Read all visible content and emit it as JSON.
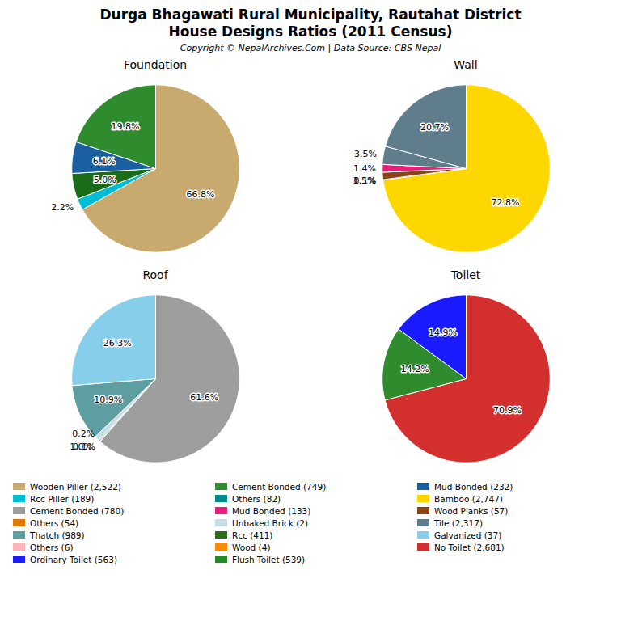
{
  "title": "Durga Bhagawati Rural Municipality, Rautahat District",
  "subtitle": "House Designs Ratios (2011 Census)",
  "caption": "Copyright © NepalArchives.Com | Data Source: CBS Nepal",
  "chart_data": [
    {
      "type": "pie",
      "title": "Foundation",
      "values": [
        66.8,
        2.2,
        5.0,
        6.1,
        19.8
      ],
      "value_labels": [
        "66.8%",
        "2.2%",
        "5.0%",
        "6.1%",
        "19.8%"
      ],
      "colors": [
        "#c8a96e",
        "#00bcd4",
        "#1a6b1a",
        "#1a5fa0",
        "#2e8b2e"
      ],
      "data_labels": true
    },
    {
      "type": "pie",
      "title": "Wall",
      "values": [
        72.8,
        0.1,
        1.4,
        1.5,
        3.5,
        20.7
      ],
      "value_labels": [
        "72.8%",
        "0.1%",
        "1.4%",
        "1.5%",
        "3.5%",
        "20.7%"
      ],
      "colors": [
        "#FFD700",
        "#e07b00",
        "#8B4513",
        "#e8207a",
        "#607d8b",
        "#607d8b"
      ],
      "data_labels": true
    },
    {
      "type": "pie",
      "title": "Roof",
      "values": [
        61.6,
        0.1,
        0.2,
        1.0,
        10.9,
        26.3
      ],
      "value_labels": [
        "61.6%",
        "0.1%",
        "0.2%",
        "1.0%",
        "10.9%",
        "26.3%"
      ],
      "colors": [
        "#9e9e9e",
        "#ffb3ba",
        "#2e8b2e",
        "#c8dce8",
        "#5f9ea0",
        "#87ceeb"
      ],
      "data_labels": true
    },
    {
      "type": "pie",
      "title": "Toilet",
      "values": [
        70.9,
        14.2,
        14.9
      ],
      "value_labels": [
        "70.9%",
        "14.2%",
        "14.9%"
      ],
      "colors": [
        "#d32f2f",
        "#2e8b2e",
        "#1a1aff"
      ],
      "data_labels": true
    }
  ],
  "legend_entries": [
    {
      "name": "Wooden Piller (2,522)",
      "color": "#c8a96e"
    },
    {
      "name": "Rcc Piller (189)",
      "color": "#00bcd4"
    },
    {
      "name": "Cement Bonded (780)",
      "color": "#9e9e9e"
    },
    {
      "name": "Others (54)",
      "color": "#e07b00"
    },
    {
      "name": "Thatch (989)",
      "color": "#5f9ea0"
    },
    {
      "name": "Others (6)",
      "color": "#ffb3ba"
    },
    {
      "name": "Ordinary Toilet (563)",
      "color": "#1a1aff"
    },
    {
      "name": "Cement Bonded (749)",
      "color": "#2e8b2e"
    },
    {
      "name": "Others (82)",
      "color": "#008b8b"
    },
    {
      "name": "Mud Bonded (133)",
      "color": "#e8207a"
    },
    {
      "name": "Unbaked Brick (2)",
      "color": "#c8dce8"
    },
    {
      "name": "Rcc (411)",
      "color": "#2e6b1a"
    },
    {
      "name": "Wood (4)",
      "color": "#ff8c00"
    },
    {
      "name": "Flush Toilet (539)",
      "color": "#228B22"
    },
    {
      "name": "Mud Bonded (232)",
      "color": "#1a5fa0"
    },
    {
      "name": "Bamboo (2,747)",
      "color": "#FFD700"
    },
    {
      "name": "Wood Planks (57)",
      "color": "#8B4513"
    },
    {
      "name": "Tile (2,317)",
      "color": "#607d8b"
    },
    {
      "name": "Galvanized (37)",
      "color": "#87ceeb"
    },
    {
      "name": "No Toilet (2,681)",
      "color": "#d32f2f"
    }
  ]
}
